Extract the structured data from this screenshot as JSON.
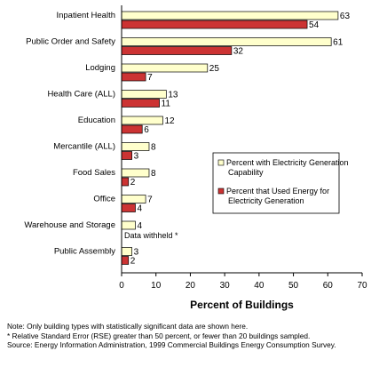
{
  "chart_data": {
    "type": "bar",
    "orientation": "horizontal",
    "categories": [
      "Inpatient Health",
      "Public Order and Safety",
      "Lodging",
      "Health Care (ALL)",
      "Education",
      "Mercantile (ALL)",
      "Food Sales",
      "Office",
      "Warehouse and Storage",
      "Public Assembly"
    ],
    "series": [
      {
        "name": "Percent with Electricity Generation Capability",
        "color": "#ffffcc",
        "values": [
          63,
          61,
          25,
          13,
          12,
          8,
          8,
          7,
          4,
          3
        ]
      },
      {
        "name": "Percent that Used Energy for Electricity Generation",
        "color": "#cc3333",
        "values": [
          54,
          32,
          7,
          11,
          6,
          3,
          2,
          4,
          null,
          2
        ]
      }
    ],
    "xlabel": "Percent of Buildings",
    "xlim": [
      0,
      70
    ],
    "xticks": [
      0,
      10,
      20,
      30,
      40,
      50,
      60,
      70
    ],
    "grid": false,
    "legend_position": "right",
    "legend": [
      "Percent with Electricity Generation Capability",
      "Percent that Used Energy for Electricity Generation"
    ],
    "annotations": [
      {
        "category": "Warehouse and Storage",
        "text": "Data withheld *"
      }
    ]
  },
  "notes": {
    "line1": "Note: Only building types with statistically significant data are shown here.",
    "line2": "* Relative Standard Error (RSE) greater than 50 percent, or fewer than 20 buildings sampled.",
    "line3": "Source: Energy Information Administration, 1999 Commercial Buildings Energy Consumption Survey."
  }
}
